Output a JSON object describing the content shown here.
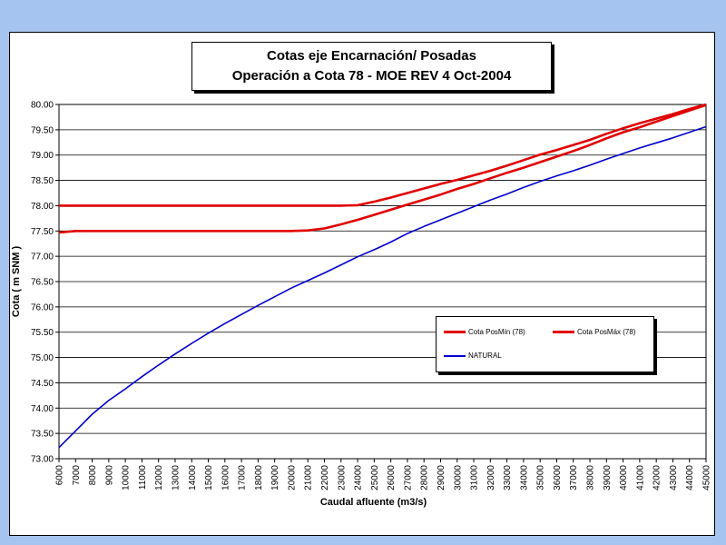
{
  "chart_data": {
    "type": "line",
    "title_line1": "Cotas eje Encarnación/ Posadas",
    "title_line2": "Operación a Cota 78 - MOE REV 4 Oct-2004",
    "xlabel": "Caudal afluente (m3/s)",
    "ylabel": "Cota ( m SNM )",
    "ylim": [
      73.0,
      80.0
    ],
    "xlim": [
      6000,
      45000
    ],
    "x": [
      6000,
      7000,
      8000,
      9000,
      10000,
      11000,
      12000,
      13000,
      14000,
      15000,
      16000,
      17000,
      18000,
      19000,
      20000,
      21000,
      22000,
      23000,
      24000,
      25000,
      26000,
      27000,
      28000,
      29000,
      30000,
      31000,
      32000,
      33000,
      34000,
      35000,
      36000,
      37000,
      38000,
      39000,
      40000,
      41000,
      42000,
      43000,
      44000,
      45000
    ],
    "x_tick_labels": [
      "6000",
      "7000",
      "8000",
      "9000",
      "10000",
      "11000",
      "12000",
      "13000",
      "14000",
      "15000",
      "16000",
      "17000",
      "18000",
      "19000",
      "20000",
      "21000",
      "22000",
      "23000",
      "24000",
      "25000",
      "26000",
      "27000",
      "28000",
      "29000",
      "30000",
      "31000",
      "32000",
      "33000",
      "34000",
      "35000",
      "36000",
      "37000",
      "38000",
      "39000",
      "40000",
      "41000",
      "42000",
      "43000",
      "44000",
      "45000"
    ],
    "y_tick_labels": [
      "73.00",
      "73.50",
      "74.00",
      "74.50",
      "75.00",
      "75.50",
      "76.00",
      "76.50",
      "77.00",
      "77.50",
      "78.00",
      "78.50",
      "79.00",
      "79.50",
      "80.00"
    ],
    "series": [
      {
        "name": "Cota PosMín (78)",
        "color": "#e00000",
        "values": [
          77.47,
          77.5,
          77.5,
          77.5,
          77.5,
          77.5,
          77.5,
          77.5,
          77.5,
          77.5,
          77.5,
          77.5,
          77.5,
          77.5,
          77.5,
          77.51,
          77.55,
          77.63,
          77.72,
          77.82,
          77.92,
          78.02,
          78.12,
          78.22,
          78.33,
          78.43,
          78.54,
          78.65,
          78.75,
          78.86,
          78.97,
          79.08,
          79.2,
          79.33,
          79.45,
          79.55,
          79.66,
          79.77,
          79.88,
          79.99
        ]
      },
      {
        "name": "Cota PosMáx (78)",
        "color": "#e00000",
        "values": [
          78.0,
          78.0,
          78.0,
          78.0,
          78.0,
          78.0,
          78.0,
          78.0,
          78.0,
          78.0,
          78.0,
          78.0,
          78.0,
          78.0,
          78.0,
          78.0,
          78.0,
          78.0,
          78.01,
          78.08,
          78.16,
          78.25,
          78.34,
          78.43,
          78.51,
          78.6,
          78.69,
          78.79,
          78.9,
          79.01,
          79.1,
          79.2,
          79.3,
          79.42,
          79.53,
          79.63,
          79.72,
          79.81,
          79.91,
          80.0
        ]
      },
      {
        "name": "NATURAL",
        "color": "#0000cc",
        "values": [
          73.22,
          73.55,
          73.88,
          74.15,
          74.38,
          74.62,
          74.85,
          75.07,
          75.28,
          75.48,
          75.67,
          75.85,
          76.03,
          76.2,
          76.37,
          76.52,
          76.67,
          76.83,
          76.99,
          77.13,
          77.28,
          77.45,
          77.59,
          77.72,
          77.85,
          77.98,
          78.11,
          78.23,
          78.36,
          78.48,
          78.59,
          78.69,
          78.8,
          78.92,
          79.03,
          79.14,
          79.24,
          79.34,
          79.45,
          79.56
        ]
      }
    ],
    "legend_position": "lower-right",
    "grid": true
  }
}
